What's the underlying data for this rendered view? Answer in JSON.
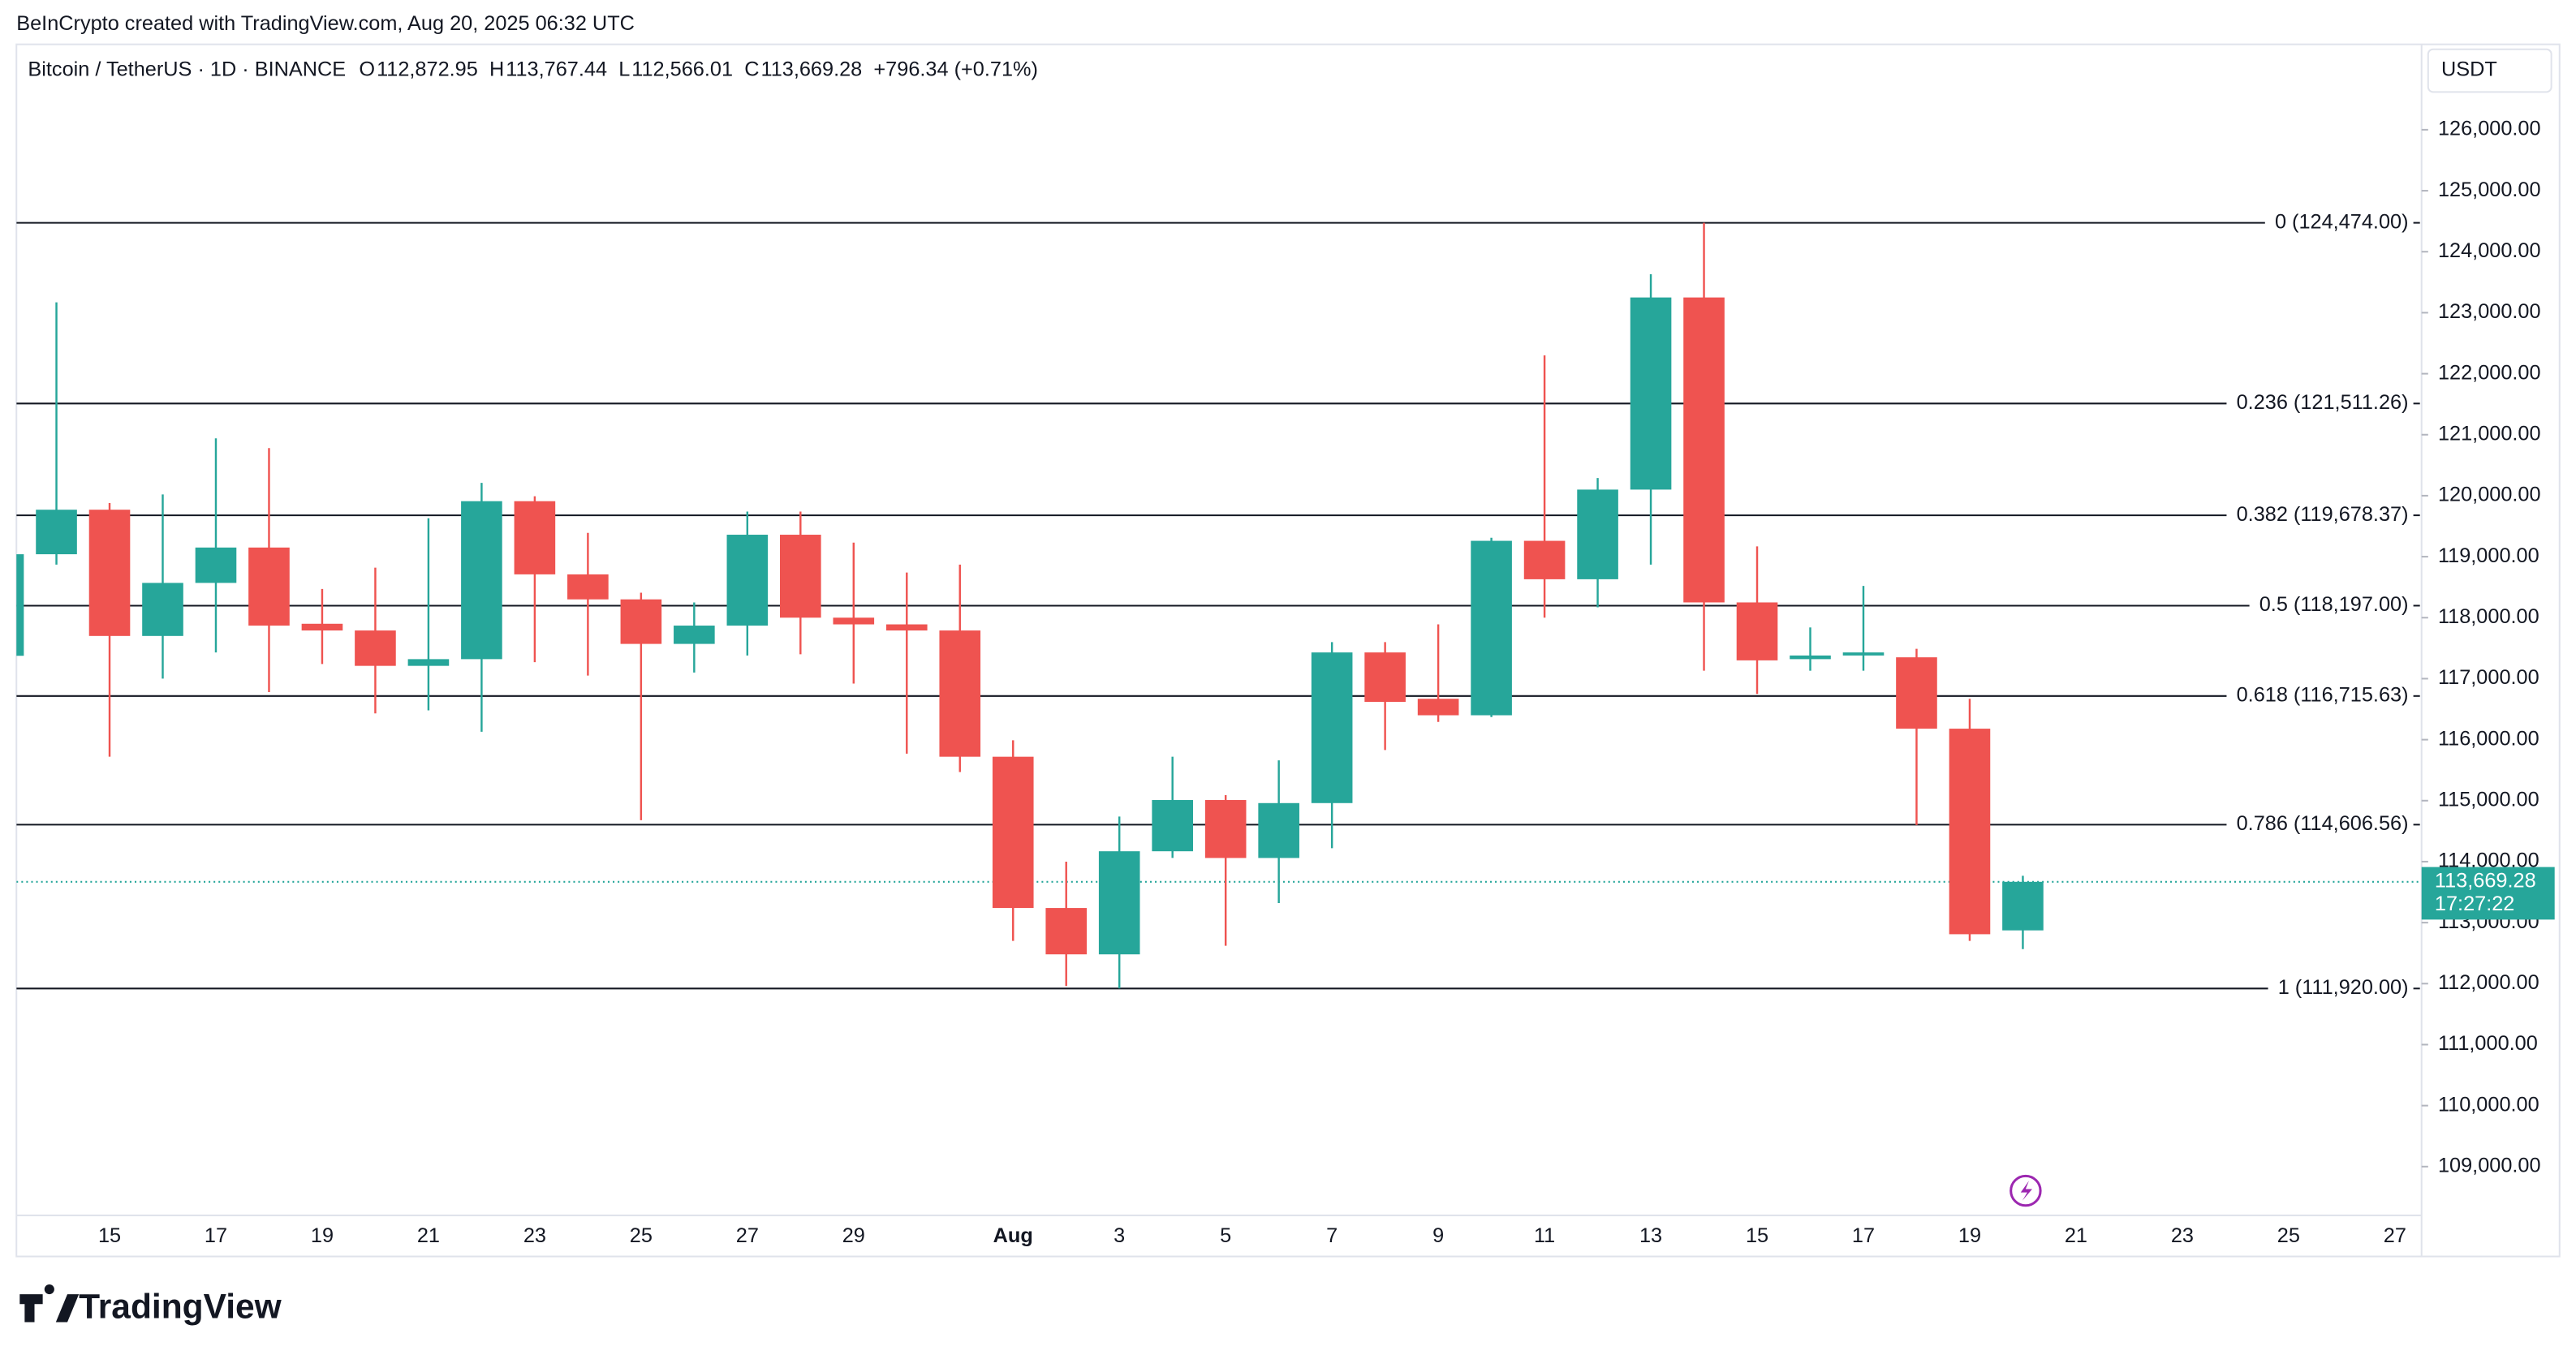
{
  "chart_data": {
    "type": "candlestick",
    "credit": "BeInCrypto created with TradingView.com, Aug 20, 2025 06:32 UTC",
    "symbol": "Bitcoin / TetherUS · 1D · BINANCE",
    "ohlc_header": {
      "o_label": "O",
      "o": "112,872.95",
      "h_label": "H",
      "h": "113,767.44",
      "l_label": "L",
      "l": "112,566.01",
      "c_label": "C",
      "c": "113,669.28",
      "change": "+796.34 (+0.71%)"
    },
    "currency": "USDT",
    "logo": "TradingView",
    "categories": [
      null,
      null,
      "15",
      null,
      "17",
      null,
      "19",
      null,
      "21",
      null,
      "23",
      null,
      "25",
      null,
      "27",
      null,
      "29",
      null,
      null,
      "Aug",
      null,
      "3",
      null,
      "5",
      null,
      "7",
      null,
      "9",
      null,
      "11",
      null,
      "13",
      null,
      "15",
      null,
      "17",
      null,
      "19",
      null,
      "21",
      null,
      "23",
      null,
      "25",
      null,
      "27"
    ],
    "open": [
      117375,
      119040,
      119770,
      117700,
      118570,
      119150,
      117900,
      117790,
      117210,
      117320,
      119910,
      118710,
      118300,
      117570,
      117870,
      119360,
      118000,
      117890,
      117790,
      115720,
      113240,
      112480,
      114170,
      115010,
      114060,
      114960,
      117430,
      116670,
      116400,
      119260,
      118630,
      120100,
      123250,
      118250,
      117320,
      117380,
      117350,
      116180,
      112872.95,
      null,
      null,
      null,
      null,
      null,
      null,
      null
    ],
    "high": [
      119100,
      123170,
      119880,
      120020,
      120940,
      120780,
      118470,
      118820,
      119630,
      120210,
      119990,
      119390,
      118410,
      118250,
      119740,
      119740,
      119230,
      118740,
      118870,
      115990,
      114000,
      114740,
      115720,
      115090,
      115660,
      117600,
      117600,
      117890,
      119310,
      122300,
      120290,
      123630,
      124474,
      119170,
      117840,
      118520,
      117490,
      116670,
      113767.44,
      null,
      null,
      null,
      null,
      null,
      null,
      null
    ],
    "low": [
      117300,
      118870,
      115720,
      117000,
      117430,
      116780,
      117240,
      116430,
      116480,
      116130,
      117270,
      117050,
      114680,
      117100,
      117380,
      117400,
      116920,
      115770,
      115470,
      112700,
      111960,
      111920,
      114060,
      112620,
      113320,
      114220,
      115830,
      116290,
      116370,
      118000,
      118170,
      118870,
      117130,
      116750,
      117130,
      117130,
      114600,
      112700,
      112566.01,
      null,
      null,
      null,
      null,
      null,
      null,
      null
    ],
    "close": [
      119040,
      119770,
      117700,
      118570,
      119150,
      117870,
      117790,
      117210,
      117320,
      119910,
      118710,
      118300,
      117570,
      117870,
      119360,
      118000,
      117890,
      117790,
      115720,
      113240,
      112480,
      114170,
      115010,
      114060,
      114960,
      117430,
      116620,
      116400,
      119260,
      118630,
      120100,
      123250,
      118250,
      117300,
      117380,
      117430,
      116180,
      112810,
      113669.28,
      null,
      null,
      null,
      null,
      null,
      null,
      null
    ],
    "up_color": "#26a69a",
    "down_color": "#ef5350",
    "ylim": [
      108200,
      127400
    ],
    "yticks": [
      {
        "value": 109000,
        "label": "109,000.00"
      },
      {
        "value": 110000,
        "label": "110,000.00"
      },
      {
        "value": 111000,
        "label": "111,000.00"
      },
      {
        "value": 112000,
        "label": "112,000.00"
      },
      {
        "value": 113000,
        "label": "113,000.00"
      },
      {
        "value": 114000,
        "label": "114,000.00"
      },
      {
        "value": 115000,
        "label": "115,000.00"
      },
      {
        "value": 116000,
        "label": "116,000.00"
      },
      {
        "value": 117000,
        "label": "117,000.00"
      },
      {
        "value": 118000,
        "label": "118,000.00"
      },
      {
        "value": 119000,
        "label": "119,000.00"
      },
      {
        "value": 120000,
        "label": "120,000.00"
      },
      {
        "value": 121000,
        "label": "121,000.00"
      },
      {
        "value": 122000,
        "label": "122,000.00"
      },
      {
        "value": 123000,
        "label": "123,000.00"
      },
      {
        "value": 124000,
        "label": "124,000.00"
      },
      {
        "value": 125000,
        "label": "125,000.00"
      },
      {
        "value": 126000,
        "label": "126,000.00"
      }
    ],
    "fib_levels": [
      {
        "value": 124474,
        "label": "0 (124,474.00)"
      },
      {
        "value": 121511.26,
        "label": "0.236 (121,511.26)"
      },
      {
        "value": 119678.37,
        "label": "0.382 (119,678.37)"
      },
      {
        "value": 118197,
        "label": "0.5 (118,197.00)"
      },
      {
        "value": 116715.63,
        "label": "0.618 (116,715.63)"
      },
      {
        "value": 114606.56,
        "label": "0.786 (114,606.56)"
      },
      {
        "value": 111920,
        "label": "1 (111,920.00)"
      }
    ],
    "last_price": {
      "value": 113669.28,
      "label": "113,669.28"
    },
    "countdown": "17:27:22"
  }
}
